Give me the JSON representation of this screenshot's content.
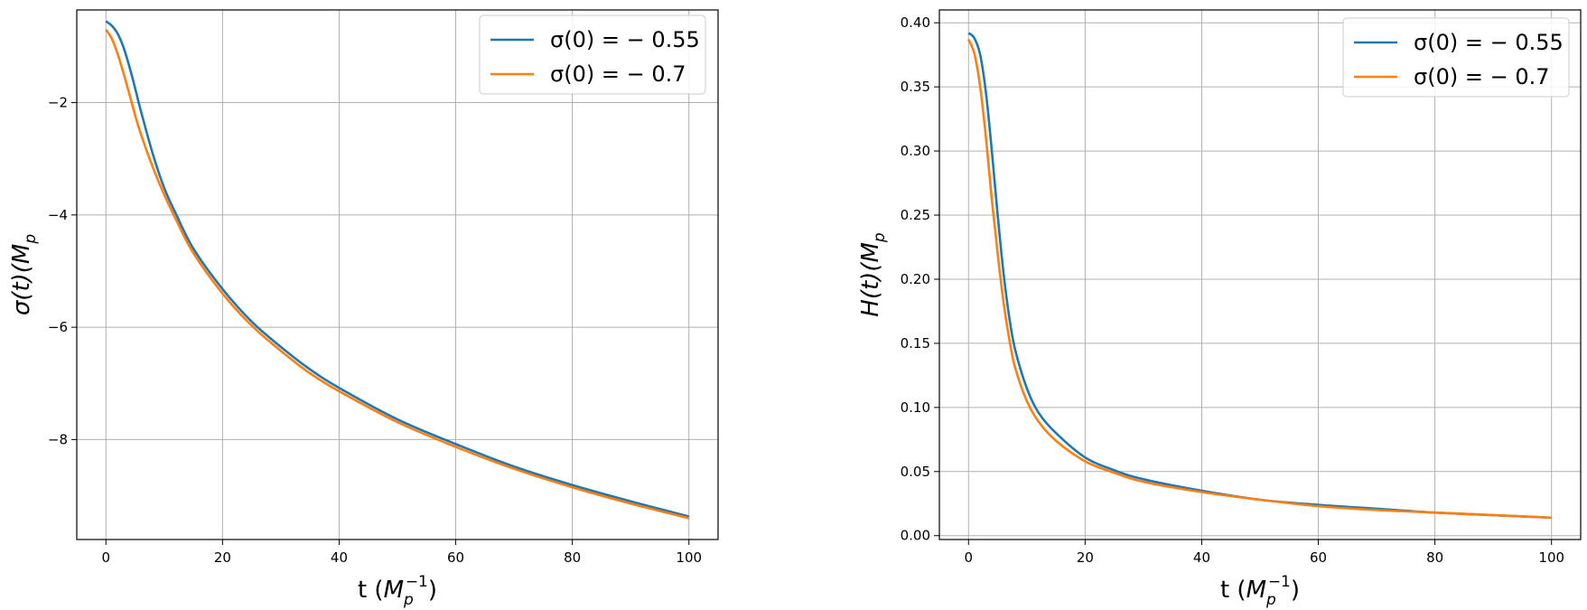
{
  "chart_data": [
    {
      "type": "line",
      "xlabel": "t (M_p^{-1})",
      "xlabel_parts": {
        "main": "t (",
        "symbol": "M",
        "sub": "p",
        "sup": "−1",
        "close": ")"
      },
      "ylabel": "σ(t)(M_p",
      "ylabel_parts": {
        "main": "σ(t)(M",
        "sub": "p"
      },
      "xlim": [
        -5,
        105
      ],
      "ylim": [
        -9.78,
        -0.35
      ],
      "xticks": [
        0,
        20,
        40,
        60,
        80,
        100
      ],
      "xtick_labels": [
        "0",
        "20",
        "40",
        "60",
        "80",
        "100"
      ],
      "yticks": [
        -2,
        -4,
        -6,
        -8
      ],
      "ytick_labels": [
        "−2",
        "−4",
        "−6",
        "−8"
      ],
      "grid": true,
      "legend_position": "top-right",
      "series": [
        {
          "name": "σ(0) = − 0.55",
          "color": "#1f77b4",
          "x": [
            0,
            1,
            2,
            3,
            4,
            5,
            6,
            8,
            10,
            12,
            15,
            20,
            25,
            30,
            35,
            40,
            50,
            60,
            70,
            80,
            90,
            100
          ],
          "y": [
            -0.55,
            -0.63,
            -0.77,
            -1.01,
            -1.35,
            -1.74,
            -2.15,
            -2.9,
            -3.52,
            -3.98,
            -4.6,
            -5.32,
            -5.9,
            -6.35,
            -6.75,
            -7.08,
            -7.64,
            -8.08,
            -8.48,
            -8.81,
            -9.1,
            -9.37
          ]
        },
        {
          "name": "σ(0) = − 0.7",
          "color": "#ff7f0e",
          "x": [
            0,
            1,
            2,
            3,
            4,
            5,
            6,
            8,
            10,
            12,
            15,
            20,
            25,
            30,
            35,
            40,
            50,
            60,
            70,
            80,
            90,
            100
          ],
          "y": [
            -0.7,
            -0.86,
            -1.13,
            -1.47,
            -1.84,
            -2.22,
            -2.56,
            -3.14,
            -3.64,
            -4.08,
            -4.68,
            -5.4,
            -5.97,
            -6.42,
            -6.82,
            -7.14,
            -7.69,
            -8.13,
            -8.52,
            -8.85,
            -9.14,
            -9.4
          ]
        }
      ]
    },
    {
      "type": "line",
      "xlabel": "t (M_p^{-1})",
      "xlabel_parts": {
        "main": "t (",
        "symbol": "M",
        "sub": "p",
        "sup": "−1",
        "close": ")"
      },
      "ylabel": "H(t)(M_p",
      "ylabel_parts": {
        "main": "H(t)(M",
        "sub": "p"
      },
      "xlim": [
        -5,
        105
      ],
      "ylim": [
        -0.003,
        0.41
      ],
      "xticks": [
        0,
        20,
        40,
        60,
        80,
        100
      ],
      "xtick_labels": [
        "0",
        "20",
        "40",
        "60",
        "80",
        "100"
      ],
      "yticks": [
        0.0,
        0.05,
        0.1,
        0.15,
        0.2,
        0.25,
        0.3,
        0.35,
        0.4
      ],
      "ytick_labels": [
        "0.00",
        "0.05",
        "0.10",
        "0.15",
        "0.20",
        "0.25",
        "0.30",
        "0.35",
        "0.40"
      ],
      "grid": true,
      "legend_position": "top-right",
      "series": [
        {
          "name": "σ(0) = − 0.55",
          "color": "#1f77b4",
          "x": [
            0,
            1,
            2,
            3,
            4,
            5,
            6,
            7,
            8,
            10,
            12,
            15,
            20,
            25,
            30,
            40,
            50,
            60,
            70,
            80,
            90,
            100
          ],
          "y": [
            0.392,
            0.388,
            0.375,
            0.345,
            0.3,
            0.25,
            0.205,
            0.17,
            0.145,
            0.115,
            0.096,
            0.08,
            0.061,
            0.051,
            0.044,
            0.035,
            0.028,
            0.024,
            0.021,
            0.018,
            0.016,
            0.014
          ]
        },
        {
          "name": "σ(0) = − 0.7",
          "color": "#ff7f0e",
          "x": [
            0,
            1,
            2,
            3,
            4,
            5,
            6,
            7,
            8,
            10,
            12,
            15,
            20,
            25,
            30,
            40,
            50,
            60,
            70,
            80,
            90,
            100
          ],
          "y": [
            0.387,
            0.376,
            0.35,
            0.31,
            0.262,
            0.22,
            0.182,
            0.153,
            0.131,
            0.105,
            0.089,
            0.074,
            0.058,
            0.049,
            0.042,
            0.034,
            0.028,
            0.023,
            0.02,
            0.018,
            0.016,
            0.014
          ]
        }
      ]
    }
  ]
}
